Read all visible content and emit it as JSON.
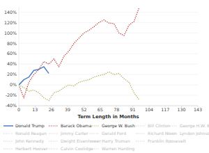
{
  "chart_data": {
    "type": "line",
    "x_label": "Term Length in Months",
    "x": [
      0,
      4,
      8,
      12,
      16,
      20,
      24,
      28,
      32,
      36,
      40,
      44,
      48,
      52,
      56,
      60,
      64,
      68,
      72,
      76,
      80,
      84,
      88,
      92,
      96
    ],
    "xlim": [
      0,
      143
    ],
    "xticks": [
      0,
      13,
      26,
      39,
      52,
      65,
      78,
      91,
      104,
      117,
      130,
      143
    ],
    "ylim": [
      -40,
      150
    ],
    "yticks": [
      {
        "value": -40,
        "label": "-40%"
      },
      {
        "value": -20,
        "label": "-20%"
      },
      {
        "value": 0,
        "label": "0%"
      },
      {
        "value": 20,
        "label": "20%"
      },
      {
        "value": 40,
        "label": "40%"
      },
      {
        "value": 60,
        "label": "60%"
      },
      {
        "value": 80,
        "label": "80%"
      },
      {
        "value": 100,
        "label": "100%"
      },
      {
        "value": 120,
        "label": "120%"
      },
      {
        "value": 140,
        "label": "140%"
      }
    ],
    "grid": true,
    "legend": "bottom",
    "series": [
      {
        "name": "Donald Trump",
        "color": "#4a7fc9",
        "line_style": "solid",
        "values": [
          0,
          10,
          15,
          28,
          30,
          35,
          22,
          null,
          null,
          null,
          null,
          null,
          null,
          null,
          null,
          null,
          null,
          null,
          null,
          null,
          null,
          null,
          null,
          null,
          null
        ]
      },
      {
        "name": "Barack Obama",
        "color": "#b8322e",
        "line_style": "dotted",
        "values": [
          0,
          -25,
          5,
          20,
          30,
          45,
          40,
          50,
          35,
          55,
          65,
          80,
          90,
          100,
          105,
          112,
          120,
          125,
          119,
          118,
          100,
          95,
          115,
          122,
          148
        ]
      },
      {
        "name": "George W. Bush",
        "color": "#b0a64e",
        "line_style": "dotted",
        "values": [
          0,
          -5,
          -12,
          -10,
          -15,
          -25,
          -30,
          -15,
          -12,
          -5,
          0,
          -2,
          5,
          8,
          10,
          15,
          18,
          20,
          25,
          20,
          22,
          12,
          5,
          -15,
          -28
        ]
      },
      {
        "name": "Bill Clinton",
        "color": "#cccccc",
        "line_style": "dotted",
        "values": [
          null,
          null,
          null,
          null,
          null,
          null,
          null,
          null,
          null,
          null,
          null,
          null,
          null,
          null,
          null,
          null,
          null,
          null,
          null,
          null,
          null,
          null,
          null,
          null,
          null
        ]
      },
      {
        "name": "George H.W. Bush",
        "color": "#cccccc",
        "line_style": "dotted",
        "values": [
          null,
          null,
          null,
          null,
          null,
          null,
          null,
          null,
          null,
          null,
          null,
          null,
          null,
          null,
          null,
          null,
          null,
          null,
          null,
          null,
          null,
          null,
          null,
          null,
          null
        ]
      },
      {
        "name": "Ronald Reagan",
        "color": "#cccccc",
        "line_style": "dotted",
        "values": [
          null,
          null,
          null,
          null,
          null,
          null,
          null,
          null,
          null,
          null,
          null,
          null,
          null,
          null,
          null,
          null,
          null,
          null,
          null,
          null,
          null,
          null,
          null,
          null,
          null
        ]
      },
      {
        "name": "Jimmy Carter",
        "color": "#cccccc",
        "line_style": "dotted",
        "values": [
          null,
          null,
          null,
          null,
          null,
          null,
          null,
          null,
          null,
          null,
          null,
          null,
          null,
          null,
          null,
          null,
          null,
          null,
          null,
          null,
          null,
          null,
          null,
          null,
          null
        ]
      },
      {
        "name": "Gerald Ford",
        "color": "#cccccc",
        "line_style": "dotted",
        "values": [
          null,
          null,
          null,
          null,
          null,
          null,
          null,
          null,
          null,
          null,
          null,
          null,
          null,
          null,
          null,
          null,
          null,
          null,
          null,
          null,
          null,
          null,
          null,
          null,
          null
        ]
      },
      {
        "name": "Richard Nixon",
        "color": "#cccccc",
        "line_style": "dotted",
        "values": [
          null,
          null,
          null,
          null,
          null,
          null,
          null,
          null,
          null,
          null,
          null,
          null,
          null,
          null,
          null,
          null,
          null,
          null,
          null,
          null,
          null,
          null,
          null,
          null,
          null
        ]
      },
      {
        "name": "Lyndon Johnson",
        "color": "#cccccc",
        "line_style": "dotted",
        "values": [
          null,
          null,
          null,
          null,
          null,
          null,
          null,
          null,
          null,
          null,
          null,
          null,
          null,
          null,
          null,
          null,
          null,
          null,
          null,
          null,
          null,
          null,
          null,
          null,
          null
        ]
      },
      {
        "name": "John Kennedy",
        "color": "#cccccc",
        "line_style": "dotted",
        "values": [
          null,
          null,
          null,
          null,
          null,
          null,
          null,
          null,
          null,
          null,
          null,
          null,
          null,
          null,
          null,
          null,
          null,
          null,
          null,
          null,
          null,
          null,
          null,
          null,
          null
        ]
      },
      {
        "name": "Dwight Eisenhower",
        "color": "#cccccc",
        "line_style": "dotted",
        "values": [
          null,
          null,
          null,
          null,
          null,
          null,
          null,
          null,
          null,
          null,
          null,
          null,
          null,
          null,
          null,
          null,
          null,
          null,
          null,
          null,
          null,
          null,
          null,
          null,
          null
        ]
      },
      {
        "name": "Harry Truman",
        "color": "#cccccc",
        "line_style": "dotted",
        "values": [
          null,
          null,
          null,
          null,
          null,
          null,
          null,
          null,
          null,
          null,
          null,
          null,
          null,
          null,
          null,
          null,
          null,
          null,
          null,
          null,
          null,
          null,
          null,
          null,
          null
        ]
      },
      {
        "name": "Franklin Roosevelt",
        "color": "#cccccc",
        "line_style": "dotted",
        "values": [
          null,
          null,
          null,
          null,
          null,
          null,
          null,
          null,
          null,
          null,
          null,
          null,
          null,
          null,
          null,
          null,
          null,
          null,
          null,
          null,
          null,
          null,
          null,
          null,
          null
        ]
      },
      {
        "name": "Herbert Hoover",
        "color": "#cccccc",
        "line_style": "dotted",
        "values": [
          null,
          null,
          null,
          null,
          null,
          null,
          null,
          null,
          null,
          null,
          null,
          null,
          null,
          null,
          null,
          null,
          null,
          null,
          null,
          null,
          null,
          null,
          null,
          null,
          null
        ]
      },
      {
        "name": "Calvin Coolidge",
        "color": "#cccccc",
        "line_style": "dotted",
        "values": [
          null,
          null,
          null,
          null,
          null,
          null,
          null,
          null,
          null,
          null,
          null,
          null,
          null,
          null,
          null,
          null,
          null,
          null,
          null,
          null,
          null,
          null,
          null,
          null,
          null
        ]
      },
      {
        "name": "Warren Harding",
        "color": "#cccccc",
        "line_style": "dotted",
        "values": [
          null,
          null,
          null,
          null,
          null,
          null,
          null,
          null,
          null,
          null,
          null,
          null,
          null,
          null,
          null,
          null,
          null,
          null,
          null,
          null,
          null,
          null,
          null,
          null,
          null
        ]
      }
    ]
  }
}
